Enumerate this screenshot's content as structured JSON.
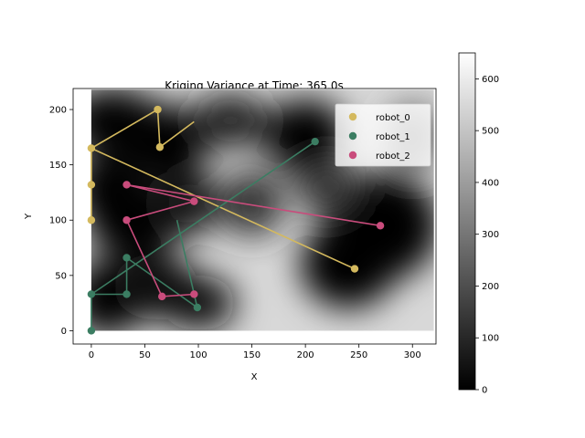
{
  "chart_data": {
    "type": "scatter",
    "title": "Kriging Variance at Time: 365.0s",
    "xlabel": "X",
    "ylabel": "Y",
    "xlim": [
      -17,
      322
    ],
    "ylim": [
      -12,
      219
    ],
    "xticks": [
      0,
      50,
      100,
      150,
      200,
      250,
      300
    ],
    "yticks": [
      0,
      50,
      100,
      150,
      200
    ],
    "legend_position": "top-right",
    "background": {
      "description": "grayscale kriging variance field",
      "extent_x": [
        0,
        320
      ],
      "extent_y": [
        0,
        218
      ]
    },
    "colorbar": {
      "min": 0,
      "max": 650,
      "ticks": [
        0,
        100,
        200,
        300,
        400,
        500,
        600
      ],
      "colormap": "gray"
    },
    "series": [
      {
        "name": "robot_0",
        "color": "#d4b95e",
        "points": [
          [
            0,
            100
          ],
          [
            0,
            132
          ],
          [
            0,
            165
          ],
          [
            62,
            200
          ],
          [
            64,
            166
          ],
          [
            246,
            56
          ]
        ],
        "path": [
          [
            246,
            56
          ],
          [
            0,
            165
          ],
          [
            0,
            132
          ],
          [
            0,
            100
          ],
          [
            0,
            165
          ],
          [
            62,
            200
          ],
          [
            64,
            166
          ],
          [
            96,
            189
          ]
        ]
      },
      {
        "name": "robot_1",
        "color": "#3b7d62",
        "points": [
          [
            0,
            0
          ],
          [
            0,
            33
          ],
          [
            33,
            33
          ],
          [
            33,
            66
          ],
          [
            99,
            21
          ],
          [
            209,
            171
          ]
        ],
        "path": [
          [
            209,
            171
          ],
          [
            0,
            33
          ],
          [
            0,
            0
          ],
          [
            0,
            33
          ],
          [
            33,
            33
          ],
          [
            33,
            66
          ],
          [
            99,
            21
          ],
          [
            80,
            100
          ]
        ]
      },
      {
        "name": "robot_2",
        "color": "#c94c7c",
        "points": [
          [
            33,
            132
          ],
          [
            33,
            100
          ],
          [
            96,
            117
          ],
          [
            66,
            31
          ],
          [
            96,
            33
          ],
          [
            270,
            95
          ]
        ],
        "path": [
          [
            270,
            95
          ],
          [
            33,
            132
          ],
          [
            96,
            117
          ],
          [
            33,
            100
          ],
          [
            66,
            31
          ],
          [
            96,
            33
          ]
        ]
      }
    ]
  }
}
